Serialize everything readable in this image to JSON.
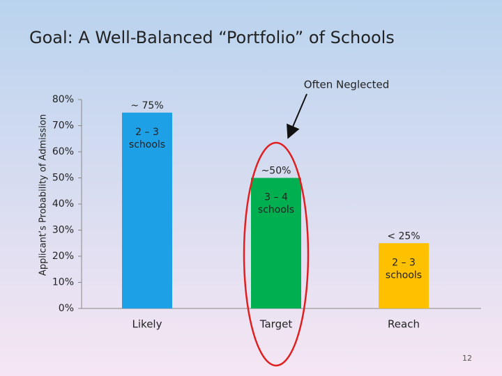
{
  "chart_data": {
    "type": "bar",
    "title": "Goal:  A Well-Balanced “Portfolio” of Schools",
    "y_label": "Applicant’s Probability of Admission",
    "categories": [
      "Likely",
      "Target",
      "Reach"
    ],
    "values": [
      75,
      50,
      25
    ],
    "value_labels": [
      "~ 75%",
      "~50%",
      "< 25%"
    ],
    "bar_labels": [
      [
        "2 – 3",
        "schools"
      ],
      [
        "3 – 4",
        "schools"
      ],
      [
        "2 – 3",
        "schools"
      ]
    ],
    "colors": [
      "#1ea0e6",
      "#00b050",
      "#ffc000"
    ],
    "ylim": [
      0,
      80
    ],
    "yticks": [
      {
        "value": 0,
        "label": "0%"
      },
      {
        "value": 10,
        "label": "10%"
      },
      {
        "value": 20,
        "label": "20%"
      },
      {
        "value": 30,
        "label": "30%"
      },
      {
        "value": 40,
        "label": "40%"
      },
      {
        "value": 50,
        "label": "50%"
      },
      {
        "value": 60,
        "label": "60%"
      },
      {
        "value": 70,
        "label": "70%"
      },
      {
        "value": 80,
        "label": "80%"
      }
    ],
    "annotation": "Often Neglected",
    "page_number": "12"
  }
}
